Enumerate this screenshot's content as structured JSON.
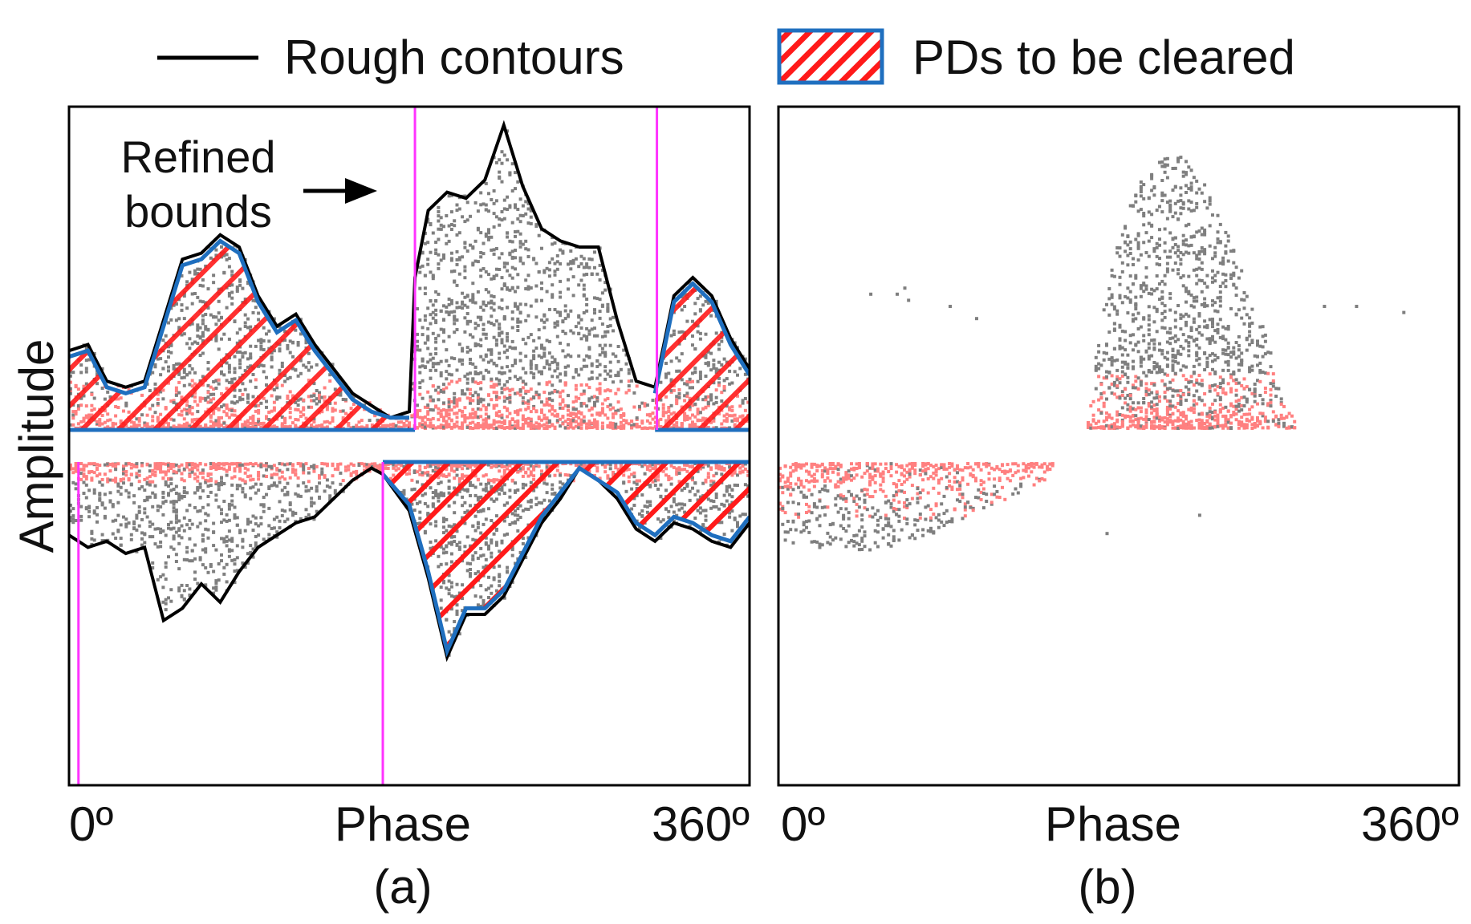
{
  "legend": {
    "rough_contours_label": "Rough contours",
    "pds_cleared_label": "PDs to be cleared"
  },
  "annotation": {
    "line1": "Refined",
    "line2": "bounds"
  },
  "colors": {
    "rough_contour": "#000000",
    "refined_contour": "#1f6fbf",
    "bound_line": "#ff33ff",
    "hatch": "#ff1a1a",
    "pd_dense": "#ff8080",
    "pd_sparse": "#7f7f7f",
    "frame": "#000000"
  },
  "chart_data": [
    {
      "type": "scatter",
      "title": "",
      "panel_label": "(a)",
      "xlabel": "Phase",
      "ylabel": "Amplitude",
      "x_tick_labels": [
        "0º",
        "360º"
      ],
      "xlim": [
        0,
        360
      ],
      "ylim": [
        -1,
        1
      ],
      "refined_bounds_deg": {
        "positive_half": [
          183,
          311
        ],
        "negative_half": [
          5,
          166
        ]
      },
      "series": [
        {
          "name": "Rough contour (positive)",
          "x": [
            0,
            10,
            20,
            30,
            40,
            50,
            60,
            70,
            80,
            90,
            100,
            110,
            120,
            130,
            140,
            150,
            160,
            170,
            180,
            183,
            190,
            200,
            210,
            220,
            230,
            240,
            250,
            260,
            270,
            280,
            290,
            300,
            310,
            320,
            330,
            340,
            350,
            360
          ],
          "y": [
            0.13,
            0.14,
            0.08,
            0.07,
            0.08,
            0.18,
            0.28,
            0.29,
            0.32,
            0.3,
            0.22,
            0.17,
            0.19,
            0.14,
            0.1,
            0.06,
            0.04,
            0.02,
            0.03,
            0.25,
            0.36,
            0.39,
            0.38,
            0.41,
            0.5,
            0.4,
            0.33,
            0.31,
            0.3,
            0.3,
            0.18,
            0.08,
            0.07,
            0.22,
            0.25,
            0.22,
            0.15,
            0.1
          ]
        },
        {
          "name": "Refined contour (positive)",
          "x": [
            0,
            10,
            20,
            30,
            40,
            50,
            60,
            70,
            80,
            90,
            100,
            110,
            120,
            130,
            140,
            150,
            160,
            170,
            180,
            310,
            320,
            330,
            340,
            350,
            360
          ],
          "y": [
            0.12,
            0.13,
            0.07,
            0.06,
            0.07,
            0.17,
            0.27,
            0.28,
            0.31,
            0.29,
            0.21,
            0.16,
            0.18,
            0.13,
            0.09,
            0.05,
            0.03,
            0.02,
            0.02,
            0.06,
            0.21,
            0.24,
            0.21,
            0.14,
            0.09
          ]
        },
        {
          "name": "Rough contour (negative)",
          "x": [
            0,
            10,
            20,
            30,
            40,
            50,
            60,
            70,
            80,
            90,
            100,
            110,
            120,
            130,
            140,
            150,
            160,
            166,
            180,
            190,
            200,
            210,
            220,
            230,
            240,
            250,
            260,
            270,
            280,
            290,
            300,
            310,
            320,
            330,
            340,
            350,
            360
          ],
          "y": [
            -0.12,
            -0.14,
            -0.13,
            -0.15,
            -0.14,
            -0.26,
            -0.24,
            -0.2,
            -0.23,
            -0.18,
            -0.14,
            -0.12,
            -0.1,
            -0.09,
            -0.06,
            -0.03,
            -0.01,
            -0.02,
            -0.08,
            -0.19,
            -0.32,
            -0.25,
            -0.25,
            -0.22,
            -0.16,
            -0.1,
            -0.06,
            -0.01,
            -0.03,
            -0.06,
            -0.11,
            -0.13,
            -0.1,
            -0.11,
            -0.13,
            -0.14,
            -0.1
          ]
        },
        {
          "name": "Refined contour (negative)",
          "x": [
            166,
            180,
            190,
            200,
            210,
            220,
            230,
            240,
            250,
            260,
            270,
            280,
            290,
            300,
            310,
            320,
            330,
            340,
            350,
            360
          ],
          "y": [
            -0.02,
            -0.07,
            -0.18,
            -0.31,
            -0.24,
            -0.24,
            -0.21,
            -0.15,
            -0.09,
            -0.05,
            -0.01,
            -0.03,
            -0.05,
            -0.1,
            -0.12,
            -0.09,
            -0.1,
            -0.12,
            -0.13,
            -0.09
          ]
        }
      ]
    },
    {
      "type": "scatter",
      "title": "",
      "panel_label": "(b)",
      "xlabel": "Phase",
      "ylabel": "",
      "x_tick_labels": [
        "0º",
        "360º"
      ],
      "xlim": [
        0,
        360
      ],
      "ylim": [
        -1,
        1
      ],
      "clusters": [
        {
          "name": "Remaining PDs (positive)",
          "phase_range": [
            163,
            273
          ],
          "peak_amplitude": 0.45,
          "peak_phase": 212
        },
        {
          "name": "Remaining PDs (negative)",
          "phase_range": [
            0,
            145
          ],
          "peak_amplitude": -0.23,
          "peak_phase": 55
        }
      ]
    }
  ]
}
